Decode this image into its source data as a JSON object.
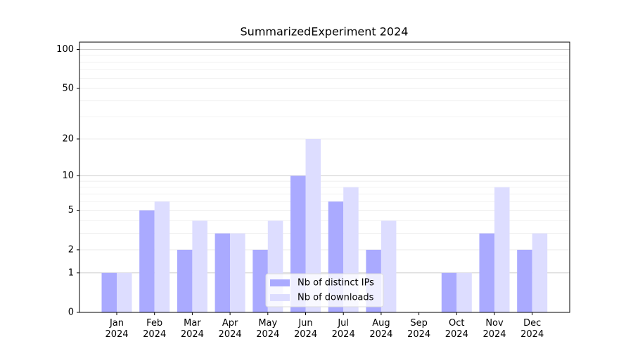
{
  "chart_data": {
    "type": "bar",
    "title": "SummarizedExperiment 2024",
    "categories": [
      "Jan 2024",
      "Feb 2024",
      "Mar 2024",
      "Apr 2024",
      "May 2024",
      "Jun 2024",
      "Jul 2024",
      "Aug 2024",
      "Sep 2024",
      "Oct 2024",
      "Nov 2024",
      "Dec 2024"
    ],
    "series": [
      {
        "name": "Nb of distinct IPs",
        "color": "#aaaaff",
        "values": [
          1,
          5,
          2,
          3,
          2,
          10,
          6,
          2,
          0,
          1,
          3,
          2
        ]
      },
      {
        "name": "Nb of downloads",
        "color": "#ddddff",
        "values": [
          1,
          6,
          4,
          3,
          4,
          20,
          8,
          4,
          0,
          1,
          8,
          3
        ]
      }
    ],
    "y_scale": "log1p",
    "ylim": [
      0,
      114
    ],
    "yticks": [
      0,
      1,
      2,
      5,
      10,
      20,
      50,
      100
    ],
    "grid": true,
    "legend_position": "lower center"
  }
}
